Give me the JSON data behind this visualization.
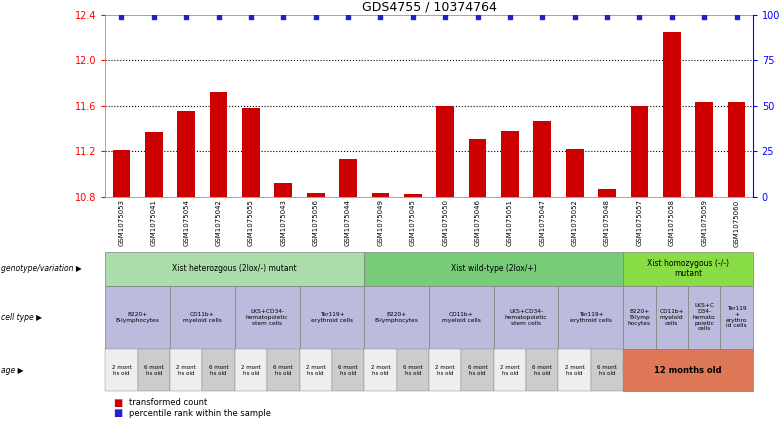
{
  "title": "GDS4755 / 10374764",
  "samples": [
    "GSM1075053",
    "GSM1075041",
    "GSM1075054",
    "GSM1075042",
    "GSM1075055",
    "GSM1075043",
    "GSM1075056",
    "GSM1075044",
    "GSM1075049",
    "GSM1075045",
    "GSM1075050",
    "GSM1075046",
    "GSM1075051",
    "GSM1075047",
    "GSM1075052",
    "GSM1075048",
    "GSM1075057",
    "GSM1075058",
    "GSM1075059",
    "GSM1075060"
  ],
  "bar_values": [
    11.21,
    11.37,
    11.55,
    11.72,
    11.58,
    10.92,
    10.83,
    11.13,
    10.83,
    10.82,
    11.6,
    11.31,
    11.38,
    11.47,
    11.22,
    10.87,
    11.6,
    12.25,
    11.63,
    11.63
  ],
  "percentile_values": [
    99,
    99,
    99,
    99,
    99,
    99,
    99,
    99,
    99,
    99,
    99,
    99,
    99,
    99,
    99,
    99,
    99,
    99,
    99,
    99
  ],
  "ylim_left": [
    10.8,
    12.4
  ],
  "ylim_right": [
    0,
    100
  ],
  "yticks_left": [
    10.8,
    11.2,
    11.6,
    12.0,
    12.4
  ],
  "yticks_right": [
    0,
    25,
    50,
    75,
    100
  ],
  "bar_color": "#cc0000",
  "dot_color": "#2222cc",
  "hline_values": [
    11.2,
    11.6,
    12.0
  ],
  "genotype_groups": [
    {
      "label": "Xist heterozgous (2lox/-) mutant",
      "start": 0,
      "end": 8,
      "color": "#aaddaa"
    },
    {
      "label": "Xist wild-type (2lox/+)",
      "start": 8,
      "end": 16,
      "color": "#77cc77"
    },
    {
      "label": "Xist homozygous (-/-)\nmutant",
      "start": 16,
      "end": 20,
      "color": "#88dd44"
    }
  ],
  "cell_type_groups": [
    {
      "label": "B220+\nB-lymphocytes",
      "start": 0,
      "end": 2
    },
    {
      "label": "CD11b+\nmyeloid cells",
      "start": 2,
      "end": 4
    },
    {
      "label": "LKS+CD34-\nhematopoietic\nstem cells",
      "start": 4,
      "end": 6
    },
    {
      "label": "Ter119+\nerythroid cells",
      "start": 6,
      "end": 8
    },
    {
      "label": "B220+\nB-lymphocytes",
      "start": 8,
      "end": 10
    },
    {
      "label": "CD11b+\nmyeloid cells",
      "start": 10,
      "end": 12
    },
    {
      "label": "LKS+CD34-\nhematopoietic\nstem cells",
      "start": 12,
      "end": 14
    },
    {
      "label": "Ter119+\nerythroid cells",
      "start": 14,
      "end": 16
    },
    {
      "label": "B220+\nB-lymp\nhocytes",
      "start": 16,
      "end": 17
    },
    {
      "label": "CD11b+\nmyeloid\ncells",
      "start": 17,
      "end": 18
    },
    {
      "label": "LKS+C\nD34-\nhemato\npoietic\ncells",
      "start": 18,
      "end": 19
    },
    {
      "label": "Ter119\n+\nerythro\nid cells",
      "start": 19,
      "end": 20
    }
  ],
  "cell_type_color": "#bbbbdd",
  "age_groups_normal": [
    {
      "label": "2 mont\nhs old",
      "start": 0,
      "end": 1
    },
    {
      "label": "6 mont\nhs old",
      "start": 1,
      "end": 2
    },
    {
      "label": "2 mont\nhs old",
      "start": 2,
      "end": 3
    },
    {
      "label": "6 mont\nhs old",
      "start": 3,
      "end": 4
    },
    {
      "label": "2 mont\nhs old",
      "start": 4,
      "end": 5
    },
    {
      "label": "6 mont\nhs old",
      "start": 5,
      "end": 6
    },
    {
      "label": "2 mont\nhs old",
      "start": 6,
      "end": 7
    },
    {
      "label": "6 mont\nhs old",
      "start": 7,
      "end": 8
    },
    {
      "label": "2 mont\nhs old",
      "start": 8,
      "end": 9
    },
    {
      "label": "6 mont\nhs old",
      "start": 9,
      "end": 10
    },
    {
      "label": "2 mont\nhs old",
      "start": 10,
      "end": 11
    },
    {
      "label": "6 mont\nhs old",
      "start": 11,
      "end": 12
    },
    {
      "label": "2 mont\nhs old",
      "start": 12,
      "end": 13
    },
    {
      "label": "6 mont\nhs old",
      "start": 13,
      "end": 14
    },
    {
      "label": "2 mont\nhs old",
      "start": 14,
      "end": 15
    },
    {
      "label": "6 mont\nhs old",
      "start": 15,
      "end": 16
    }
  ],
  "age_normal_color": "#dddddd",
  "age_special": {
    "label": "12 months old",
    "start": 16,
    "end": 20,
    "color": "#dd7755"
  },
  "legend_items": [
    {
      "label": "transformed count",
      "color": "#cc0000"
    },
    {
      "label": "percentile rank within the sample",
      "color": "#2222cc"
    }
  ],
  "row_labels": [
    "genotype/variation",
    "cell type",
    "age"
  ],
  "background_color": "#ffffff",
  "xtick_bg_color": "#dddddd"
}
